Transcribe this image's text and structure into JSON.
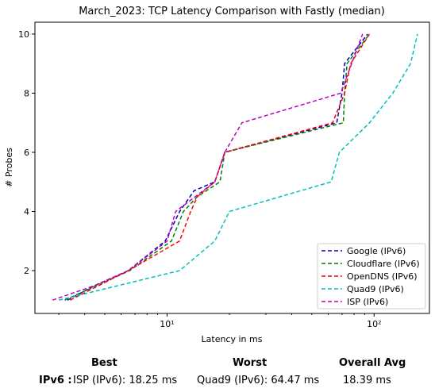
{
  "chart_data": {
    "type": "line",
    "title": "March_2023: TCP Latency Comparison with Fastly (median)",
    "xlabel": "Latency in ms",
    "ylabel": "# Probes",
    "xscale": "log",
    "xlim": [
      2.3,
      185
    ],
    "ylim": [
      0.55,
      10.4
    ],
    "x_ticks": [
      {
        "value": 10,
        "label": "10¹"
      },
      {
        "value": 100,
        "label": "10²"
      }
    ],
    "y_ticks": [
      2,
      4,
      6,
      8,
      10
    ],
    "grid": false,
    "legend_position": "lower-right",
    "series": [
      {
        "name": "Google (IPv6)",
        "color": "#0000bf",
        "x": [
          3.3,
          4.5,
          6.5,
          9.8,
          11.5,
          13.5,
          17.0,
          19.0,
          66.0,
          70.0,
          72.0,
          93.0
        ],
        "y": [
          1,
          1.5,
          2,
          3,
          4,
          4.7,
          5,
          6,
          7,
          8,
          9,
          10
        ]
      },
      {
        "name": "Cloudflare (IPv6)",
        "color": "#008000",
        "x": [
          3.2,
          4.6,
          6.6,
          10.5,
          12.0,
          14.0,
          18.0,
          19.0,
          71.0,
          72.0,
          74.0,
          95.0
        ],
        "y": [
          1,
          1.5,
          2,
          3,
          4,
          4.5,
          5,
          6,
          7,
          8,
          9,
          10
        ]
      },
      {
        "name": "OpenDNS (IPv6)",
        "color": "#ff0000",
        "x": [
          3.4,
          4.7,
          6.5,
          11.5,
          13.0,
          14.0,
          17.0,
          19.0,
          63.0,
          72.0,
          77.0,
          95.0
        ],
        "y": [
          1,
          1.5,
          2,
          3,
          4,
          4.5,
          5,
          6,
          7,
          8,
          9,
          10
        ]
      },
      {
        "name": "Quad9 (IPv6)",
        "color": "#00bfbf",
        "x": [
          3.0,
          11.5,
          17.0,
          20.0,
          62.0,
          68.0,
          95.0,
          123.0,
          150.0,
          162.0
        ],
        "y": [
          1,
          2,
          3,
          4,
          5,
          6,
          7,
          8,
          9,
          10
        ]
      },
      {
        "name": "ISP (IPv6)",
        "color": "#bf00bf",
        "x": [
          2.8,
          4.5,
          6.5,
          10.0,
          11.0,
          17.0,
          19.0,
          23.0,
          69.0,
          88.0
        ],
        "y": [
          1,
          1.5,
          2,
          3,
          4,
          5,
          6,
          7,
          8,
          10
        ]
      }
    ]
  },
  "summary": {
    "best_header": "Best",
    "worst_header": "Worst",
    "avg_header": "Overall Avg",
    "row_label": "IPv6 :",
    "best_value": "ISP (IPv6): 18.25 ms",
    "worst_value": "Quad9 (IPv6): 64.47 ms",
    "avg_value": "18.39 ms"
  }
}
